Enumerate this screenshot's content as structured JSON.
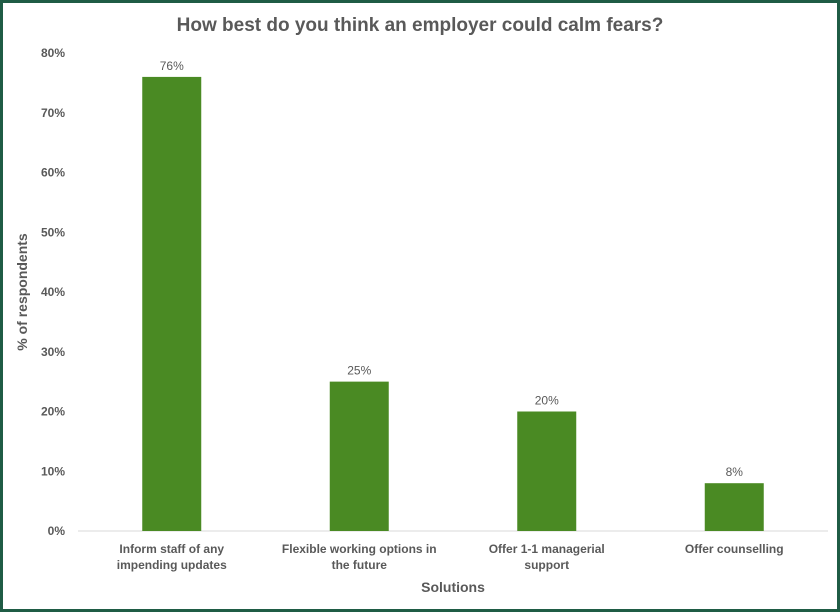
{
  "chart_data": {
    "type": "bar",
    "title": "How best do you think an employer could calm fears?",
    "xlabel": "Solutions",
    "ylabel": "% of respondents",
    "categories": [
      [
        "Inform staff of any",
        "impending updates"
      ],
      [
        "Flexible working options in",
        "the future"
      ],
      [
        "Offer 1-1 managerial",
        "support"
      ],
      [
        "Offer counselling"
      ]
    ],
    "values": [
      76,
      25,
      20,
      8
    ],
    "data_labels": [
      "76%",
      "25%",
      "20%",
      "8%"
    ],
    "ylim": [
      0,
      80
    ],
    "yticks": [
      0,
      10,
      20,
      30,
      40,
      50,
      60,
      70,
      80
    ],
    "ytick_labels": [
      "0%",
      "10%",
      "20%",
      "30%",
      "40%",
      "50%",
      "60%",
      "70%",
      "80%"
    ],
    "grid": false,
    "legend": "none",
    "colors": {
      "bar": "#4a8a23",
      "border": "#1f5c45",
      "text": "#595959",
      "axis": "#d9d9d9"
    }
  }
}
